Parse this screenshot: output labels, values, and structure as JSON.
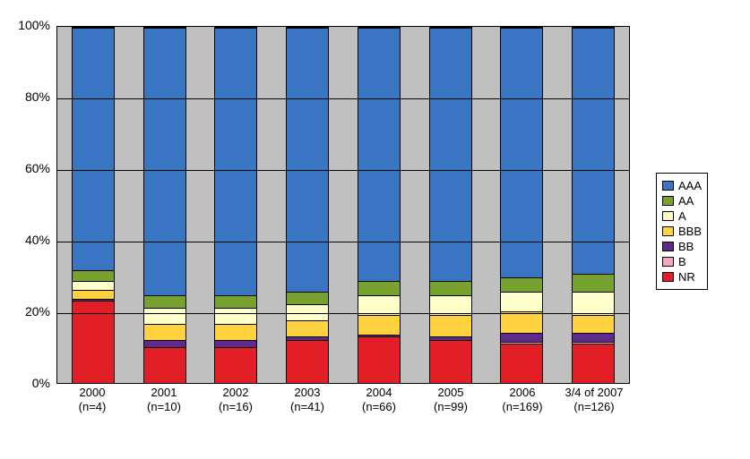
{
  "chart": {
    "type": "stacked-bar-percent",
    "background_color": "#c0c0c0",
    "page_background": "#ffffff",
    "plot_border_color": "#000000",
    "grid_color": "#000000",
    "axis_font_size": 14,
    "x_label_font_size": 13,
    "legend_font_size": 13,
    "bar_width_ratio": 0.6,
    "ylim": [
      0,
      100
    ],
    "ytick_step": 20,
    "y_ticks": [
      {
        "value": 0,
        "label": "0%"
      },
      {
        "value": 20,
        "label": "20%"
      },
      {
        "value": 40,
        "label": "40%"
      },
      {
        "value": 60,
        "label": "60%"
      },
      {
        "value": 80,
        "label": "80%"
      },
      {
        "value": 100,
        "label": "100%"
      }
    ],
    "legend_order": [
      "AAA",
      "AA",
      "A",
      "BBB",
      "BB",
      "B",
      "NR"
    ],
    "stack_order": [
      "NR",
      "B",
      "BB",
      "BBB",
      "A",
      "AA",
      "AAA"
    ],
    "colors": {
      "AAA": "#3a75c4",
      "AA": "#78a22f",
      "A": "#ffffcc",
      "BBB": "#ffd23f",
      "BB": "#5e2b8a",
      "B": "#f4a6c0",
      "NR": "#e21e26"
    },
    "segment_border_color": "#000000",
    "categories": [
      {
        "label_line1": "2000",
        "label_line2": "(n=4)",
        "values": {
          "NR": 23.0,
          "B": 0.0,
          "BB": 0.5,
          "BBB": 2.5,
          "A": 2.5,
          "AA": 3.0,
          "AAA": 68.5
        }
      },
      {
        "label_line1": "2001",
        "label_line2": "(n=10)",
        "values": {
          "NR": 10.0,
          "B": 0.0,
          "BB": 2.0,
          "BBB": 4.5,
          "A": 4.5,
          "AA": 3.5,
          "AAA": 75.5
        }
      },
      {
        "label_line1": "2002",
        "label_line2": "(n=16)",
        "values": {
          "NR": 10.0,
          "B": 0.0,
          "BB": 2.0,
          "BBB": 4.5,
          "A": 4.5,
          "AA": 3.5,
          "AAA": 75.5
        }
      },
      {
        "label_line1": "2003",
        "label_line2": "(n=41)",
        "values": {
          "NR": 12.0,
          "B": 0.0,
          "BB": 1.0,
          "BBB": 4.5,
          "A": 4.5,
          "AA": 3.5,
          "AAA": 74.5
        }
      },
      {
        "label_line1": "2004",
        "label_line2": "(n=66)",
        "values": {
          "NR": 13.0,
          "B": 0.0,
          "BB": 0.5,
          "BBB": 5.5,
          "A": 5.5,
          "AA": 4.0,
          "AAA": 71.5
        }
      },
      {
        "label_line1": "2005",
        "label_line2": "(n=99)",
        "values": {
          "NR": 12.0,
          "B": 0.0,
          "BB": 1.0,
          "BBB": 6.0,
          "A": 5.5,
          "AA": 4.0,
          "AAA": 71.5
        }
      },
      {
        "label_line1": "2006",
        "label_line2": "(n=169)",
        "values": {
          "NR": 11.0,
          "B": 0.5,
          "BB": 2.5,
          "BBB": 6.0,
          "A": 5.5,
          "AA": 4.0,
          "AAA": 70.5
        }
      },
      {
        "label_line1": "3/4 of 2007",
        "label_line2": "(n=126)",
        "values": {
          "NR": 11.0,
          "B": 0.5,
          "BB": 2.5,
          "BBB": 5.0,
          "A": 6.5,
          "AA": 5.0,
          "AAA": 69.5
        }
      }
    ]
  }
}
